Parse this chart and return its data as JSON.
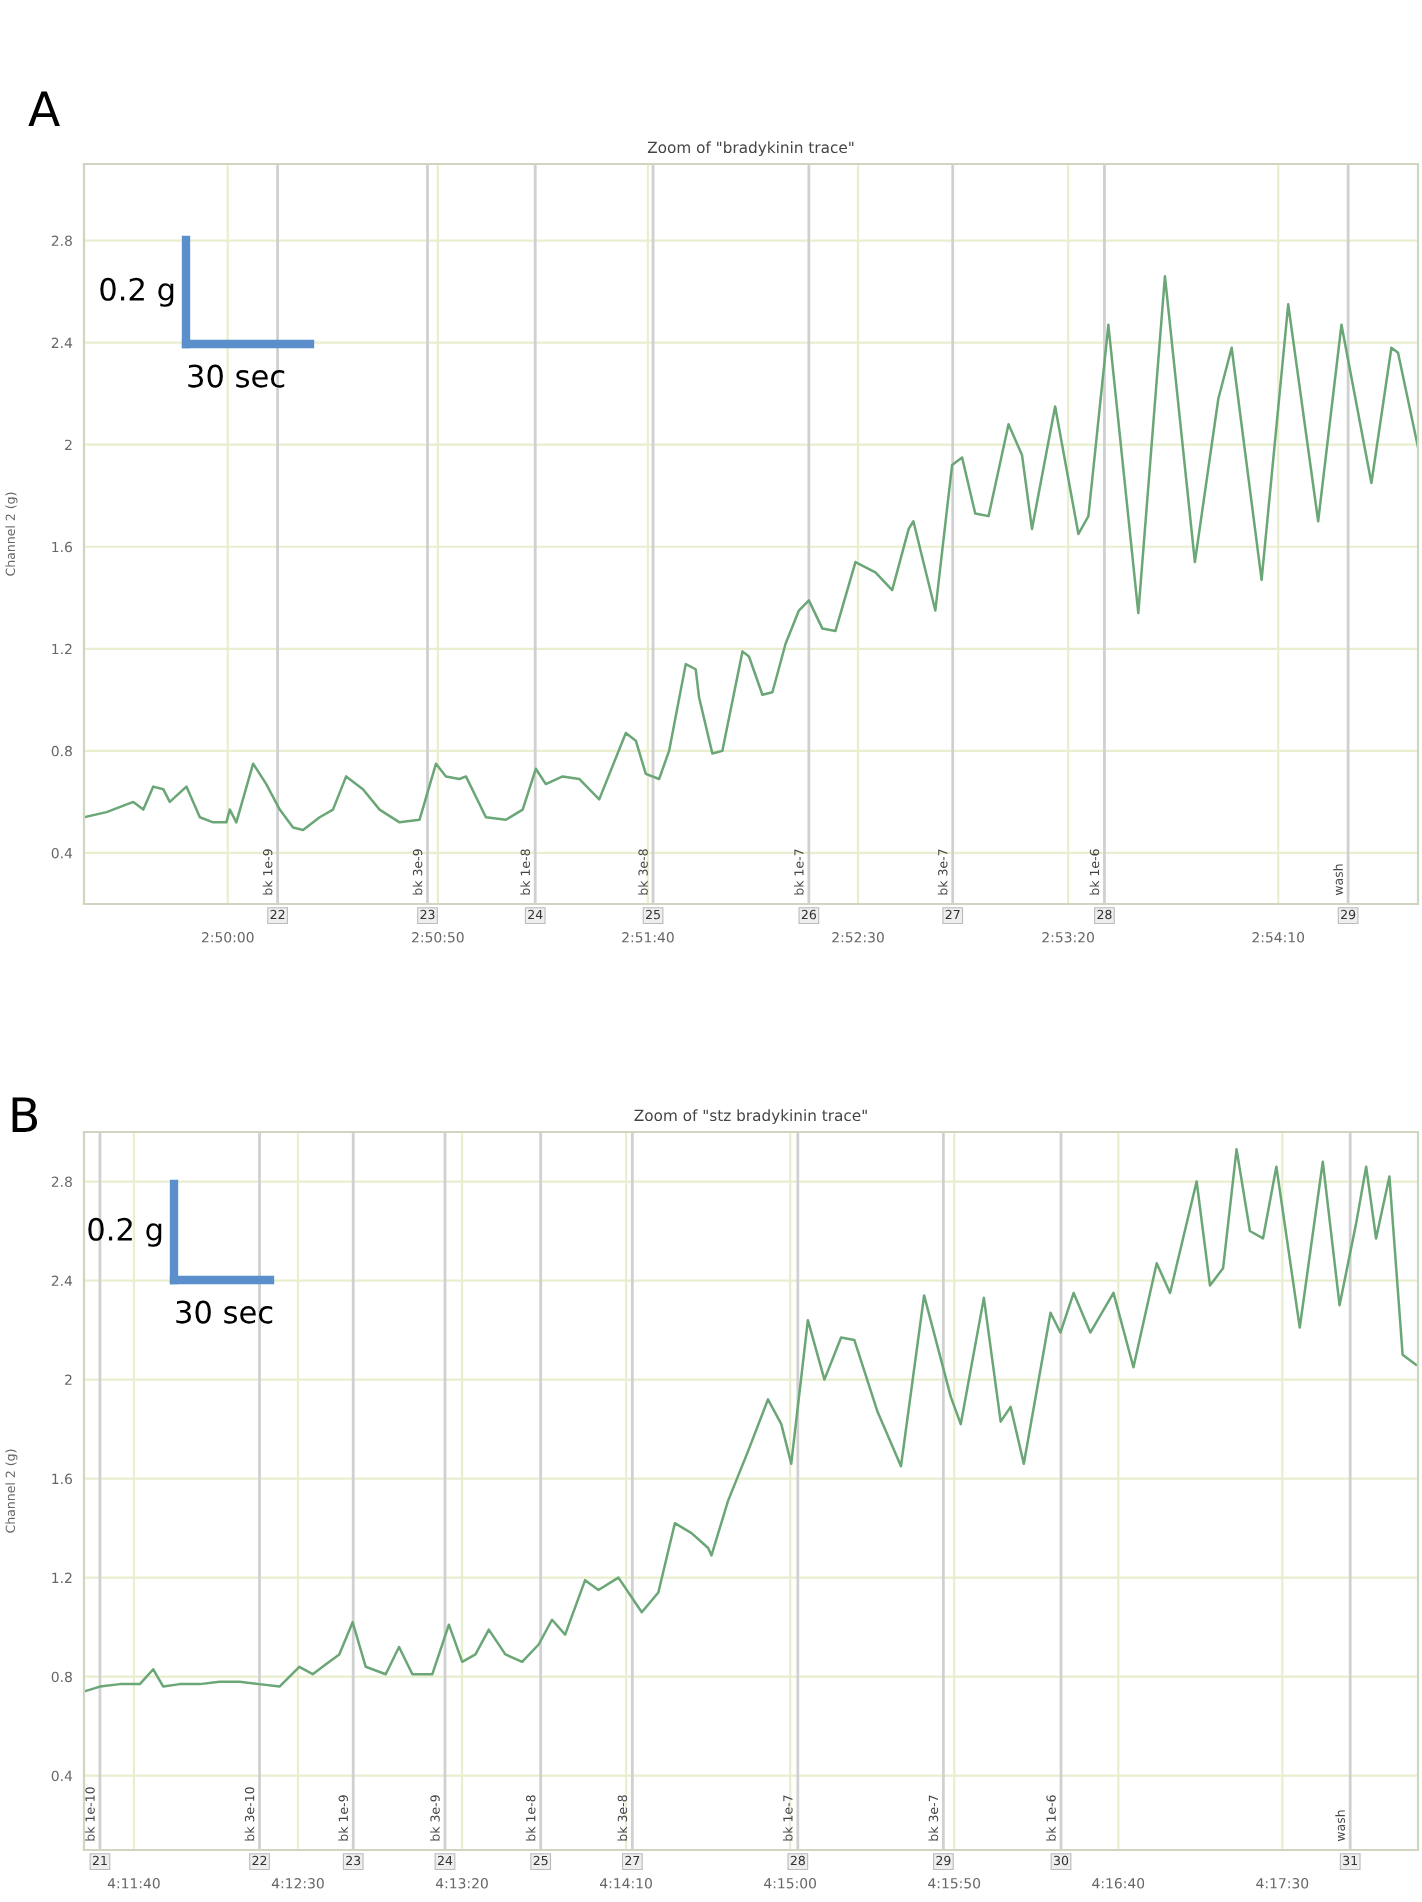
{
  "chart_data": [
    {
      "type": "line",
      "title": "Zoom of \"bradykinin trace\"",
      "ylabel": "Channel 2 (g)",
      "x": [
        2.82383,
        2.82532,
        2.82709,
        2.82775,
        2.82841,
        2.82907,
        2.8295,
        2.8306,
        2.83149,
        2.83237,
        2.83324,
        2.83347,
        2.8339,
        2.83501,
        2.83588,
        2.83677,
        2.83765,
        2.83831,
        2.83941,
        2.84029,
        2.84116,
        2.84227,
        2.84337,
        2.84469,
        2.84601,
        2.8471,
        2.84776,
        2.84865,
        2.84908,
        2.8504,
        2.85172,
        2.85283,
        2.8537,
        2.85436,
        2.85547,
        2.85657,
        2.85789,
        2.85965,
        2.86031,
        2.86097,
        2.86185,
        2.86251,
        2.86361,
        2.86427,
        2.86449,
        2.86537,
        2.86603,
        2.86736,
        2.86779,
        2.86868,
        2.86934,
        2.87021,
        2.87109,
        2.87175,
        2.87264,
        2.87351,
        2.87483,
        2.87615,
        2.87726,
        2.87835,
        2.87866,
        2.88011,
        2.88122,
        2.88188,
        2.88275,
        2.88363,
        2.88495,
        2.88584,
        2.8865,
        2.88803,
        2.88957,
        2.89023,
        2.89155,
        2.89353,
        2.89529,
        2.89727,
        2.89882,
        2.8997,
        2.90168,
        2.90344,
        2.90542,
        2.90696,
        2.90894,
        2.91026,
        2.9107,
        2.91202
      ],
      "series": [
        {
          "color": "#6aa676",
          "values": [
            0.54,
            0.56,
            0.6,
            0.57,
            0.66,
            0.65,
            0.6,
            0.66,
            0.54,
            0.52,
            0.52,
            0.57,
            0.52,
            0.75,
            0.67,
            0.57,
            0.5,
            0.49,
            0.54,
            0.57,
            0.7,
            0.65,
            0.57,
            0.52,
            0.53,
            0.75,
            0.7,
            0.69,
            0.7,
            0.54,
            0.53,
            0.57,
            0.73,
            0.67,
            0.7,
            0.69,
            0.61,
            0.87,
            0.84,
            0.71,
            0.69,
            0.8,
            1.14,
            1.12,
            1.01,
            0.79,
            0.8,
            1.19,
            1.17,
            1.02,
            1.03,
            1.22,
            1.35,
            1.39,
            1.28,
            1.27,
            1.54,
            1.5,
            1.43,
            1.67,
            1.7,
            1.35,
            1.92,
            1.95,
            1.73,
            1.72,
            2.08,
            1.96,
            1.67,
            2.15,
            1.65,
            1.72,
            2.47,
            1.34,
            2.66,
            1.54,
            2.18,
            2.38,
            1.47,
            2.55,
            1.7,
            2.47,
            1.85,
            2.38,
            2.36,
            1.99
          ]
        }
      ],
      "xlim": [
        2.82383,
        2.91202
      ],
      "ylim": [
        0.2,
        3.1
      ],
      "xticks": [
        {
          "value": 2.833333,
          "label": "2:50:00"
        },
        {
          "value": 2.847222,
          "label": "2:50:50"
        },
        {
          "value": 2.861111,
          "label": "2:51:40"
        },
        {
          "value": 2.875,
          "label": "2:52:30"
        },
        {
          "value": 2.888889,
          "label": "2:53:20"
        },
        {
          "value": 2.902778,
          "label": "2:54:10"
        }
      ],
      "yticks": [
        0.4,
        0.8,
        1.2,
        1.6,
        2,
        2.4,
        2.8
      ],
      "grid": true,
      "ref_lines": [
        {
          "axis": "x",
          "value": 2.83663,
          "label": "bk 1e-9",
          "color": "#d0d0d0"
        },
        {
          "axis": "x",
          "value": 2.84654,
          "label": "bk 3e-9",
          "color": "#d0d0d0"
        },
        {
          "axis": "x",
          "value": 2.85366,
          "label": "bk 1e-8",
          "color": "#d0d0d0"
        },
        {
          "axis": "x",
          "value": 2.86145,
          "label": "bk 3e-8",
          "color": "#d0d0d0"
        },
        {
          "axis": "x",
          "value": 2.87175,
          "label": "bk 1e-7",
          "color": "#d0d0d0"
        },
        {
          "axis": "x",
          "value": 2.88126,
          "label": "bk 3e-7",
          "color": "#d0d0d0"
        },
        {
          "axis": "x",
          "value": 2.89129,
          "label": "bk 1e-6",
          "color": "#d0d0d0"
        },
        {
          "axis": "x",
          "value": 2.9074,
          "label": "wash",
          "color": "#d0d0d0"
        }
      ],
      "annotations": [
        "A",
        "0.2 g",
        "30 sec",
        {
          "text": "22",
          "x": 2.83663,
          "y": 0.2
        },
        {
          "text": "23",
          "x": 2.84654,
          "y": 0.2
        },
        {
          "text": "24",
          "x": 2.85366,
          "y": 0.2
        },
        {
          "text": "25",
          "x": 2.86145,
          "y": 0.2
        },
        {
          "text": "26",
          "x": 2.87175,
          "y": 0.2
        },
        {
          "text": "27",
          "x": 2.88126,
          "y": 0.2
        },
        {
          "text": "28",
          "x": 2.89129,
          "y": 0.2
        },
        {
          "text": "29",
          "x": 2.9074,
          "y": 0.2
        }
      ]
    },
    {
      "type": "line",
      "title": "Zoom of \"stz bradykinin trace\"",
      "ylabel": "Channel 2 (g)",
      "x": [
        4.19022,
        4.19157,
        4.19326,
        4.19495,
        4.19608,
        4.19693,
        4.19833,
        4.20001,
        4.2017,
        4.20339,
        4.20508,
        4.20677,
        4.20845,
        4.20958,
        4.2107,
        4.21183,
        4.21296,
        4.21407,
        4.21576,
        4.21689,
        4.21802,
        4.21971,
        4.22111,
        4.22224,
        4.22336,
        4.22449,
        4.22589,
        4.22731,
        4.22871,
        4.22984,
        4.23095,
        4.23264,
        4.23377,
        4.23546,
        4.23744,
        4.23884,
        4.24024,
        4.24165,
        4.24306,
        4.24334,
        4.24474,
        4.24643,
        4.24812,
        4.24925,
        4.25009,
        4.2515,
        4.2529,
        4.25431,
        4.25543,
        4.2574,
        4.25938,
        4.26134,
        4.2636,
        4.26444,
        4.2664,
        4.26782,
        4.26866,
        4.26978,
        4.27204,
        4.27288,
        4.274,
        4.27541,
        4.27737,
        4.27906,
        4.28103,
        4.28216,
        4.28441,
        4.28554,
        4.28665,
        4.28779,
        4.28892,
        4.29003,
        4.29116,
        4.29314,
        4.29509,
        4.29651,
        4.29791,
        4.29876,
        4.2996,
        4.30073,
        4.30185,
        4.30298
      ],
      "series": [
        {
          "color": "#6aa676",
          "values": [
            0.74,
            0.76,
            0.77,
            0.77,
            0.83,
            0.76,
            0.77,
            0.77,
            0.78,
            0.78,
            0.77,
            0.76,
            0.84,
            0.81,
            0.85,
            0.89,
            1.02,
            0.84,
            0.81,
            0.92,
            0.81,
            0.81,
            1.01,
            0.86,
            0.89,
            0.99,
            0.89,
            0.86,
            0.93,
            1.03,
            0.97,
            1.19,
            1.15,
            1.2,
            1.06,
            1.14,
            1.42,
            1.38,
            1.32,
            1.29,
            1.51,
            1.71,
            1.92,
            1.82,
            1.66,
            2.24,
            2.0,
            2.17,
            2.16,
            1.87,
            1.65,
            2.34,
            1.93,
            1.82,
            2.33,
            1.83,
            1.89,
            1.66,
            2.27,
            2.19,
            2.35,
            2.19,
            2.35,
            2.05,
            2.47,
            2.35,
            2.8,
            2.38,
            2.45,
            2.93,
            2.6,
            2.57,
            2.86,
            2.21,
            2.88,
            2.3,
            2.63,
            2.86,
            2.57,
            2.82,
            2.1,
            2.06
          ]
        }
      ],
      "xlim": [
        4.19022,
        4.30315
      ],
      "ylim": [
        0.1,
        3.0
      ],
      "xticks": [
        {
          "value": 4.194444,
          "label": "4:11:40"
        },
        {
          "value": 4.208333,
          "label": "4:12:30"
        },
        {
          "value": 4.222222,
          "label": "4:13:20"
        },
        {
          "value": 4.236111,
          "label": "4:14:10"
        },
        {
          "value": 4.25,
          "label": "4:15:00"
        },
        {
          "value": 4.263889,
          "label": "4:15:50"
        },
        {
          "value": 4.277778,
          "label": "4:16:40"
        },
        {
          "value": 4.291667,
          "label": "4:17:30"
        }
      ],
      "yticks": [
        0.4,
        0.8,
        1.2,
        1.6,
        2,
        2.4,
        2.8
      ],
      "grid": true,
      "ref_lines": [
        {
          "axis": "x",
          "value": 4.19157,
          "label": "bk 1e-10",
          "color": "#d0d0d0"
        },
        {
          "axis": "x",
          "value": 4.20508,
          "label": "bk 3e-10",
          "color": "#d0d0d0"
        },
        {
          "axis": "x",
          "value": 4.21301,
          "label": "bk 1e-9",
          "color": "#d0d0d0"
        },
        {
          "axis": "x",
          "value": 4.22078,
          "label": "bk 3e-9",
          "color": "#d0d0d0"
        },
        {
          "axis": "x",
          "value": 4.22888,
          "label": "bk 1e-8",
          "color": "#d0d0d0"
        },
        {
          "axis": "x",
          "value": 4.23664,
          "label": "bk 3e-8",
          "color": "#d0d0d0"
        },
        {
          "axis": "x",
          "value": 4.25065,
          "label": "bk 1e-7",
          "color": "#d0d0d0"
        },
        {
          "axis": "x",
          "value": 4.26297,
          "label": "bk 3e-7",
          "color": "#d0d0d0"
        },
        {
          "axis": "x",
          "value": 4.27293,
          "label": "bk 1e-6",
          "color": "#d0d0d0"
        },
        {
          "axis": "x",
          "value": 4.29741,
          "label": "wash",
          "color": "#d0d0d0"
        }
      ],
      "annotations": [
        "B",
        "0.2 g",
        "30 sec",
        {
          "text": "21",
          "x": 4.19157,
          "y": 0.1
        },
        {
          "text": "22",
          "x": 4.20508,
          "y": 0.1
        },
        {
          "text": "23",
          "x": 4.21301,
          "y": 0.1
        },
        {
          "text": "24",
          "x": 4.22078,
          "y": 0.1
        },
        {
          "text": "25",
          "x": 4.22888,
          "y": 0.1
        },
        {
          "text": "27",
          "x": 4.23664,
          "y": 0.1
        },
        {
          "text": "28",
          "x": 4.25065,
          "y": 0.1
        },
        {
          "text": "29",
          "x": 4.26297,
          "y": 0.1
        },
        {
          "text": "30",
          "x": 4.27293,
          "y": 0.1
        },
        {
          "text": "31",
          "x": 4.29741,
          "y": 0.1
        }
      ]
    }
  ]
}
